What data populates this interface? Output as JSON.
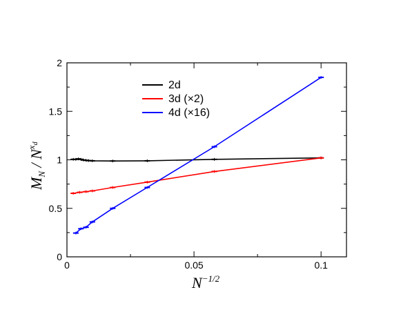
{
  "chart_data": {
    "type": "line",
    "title": "",
    "xlabel": {
      "base": "N",
      "exponent": "−1/2"
    },
    "ylabel": {
      "base": "M",
      "sub": "N",
      "divider": " / ",
      "base2": "N",
      "exponent": "x",
      "exponent_sub": "d"
    },
    "xlim": [
      0,
      0.11
    ],
    "ylim": [
      0,
      2
    ],
    "x_ticks": [
      0,
      0.05,
      0.1
    ],
    "x_tick_labels": [
      "0",
      "0.05",
      "0.1"
    ],
    "y_ticks": [
      0,
      0.5,
      1,
      1.5,
      2
    ],
    "y_tick_labels": [
      "0",
      "0.5",
      "1",
      "1.5",
      "2"
    ],
    "grid": false,
    "legend_placement": "top-center",
    "series": [
      {
        "name": "2d",
        "color": "#000000",
        "x": [
          0.0025,
          0.0035,
          0.0045,
          0.0055,
          0.0065,
          0.0075,
          0.0085,
          0.01,
          0.018,
          0.0316,
          0.058,
          0.1
        ],
        "y": [
          1.005,
          1.005,
          1.01,
          1.005,
          0.998,
          0.995,
          0.992,
          0.99,
          0.988,
          0.99,
          1.005,
          1.02
        ]
      },
      {
        "name": "3d (×2)",
        "color": "#ff0000",
        "x": [
          0.0025,
          0.005,
          0.0075,
          0.01,
          0.018,
          0.0316,
          0.058,
          0.1
        ],
        "y": [
          0.655,
          0.665,
          0.672,
          0.68,
          0.715,
          0.77,
          0.88,
          1.02
        ]
      },
      {
        "name": "4d (×16)",
        "color": "#0000ff",
        "x": [
          0.0035,
          0.0055,
          0.0075,
          0.01,
          0.018,
          0.0316,
          0.058,
          0.1
        ],
        "y": [
          0.245,
          0.29,
          0.305,
          0.36,
          0.5,
          0.715,
          1.135,
          1.85
        ]
      }
    ]
  }
}
